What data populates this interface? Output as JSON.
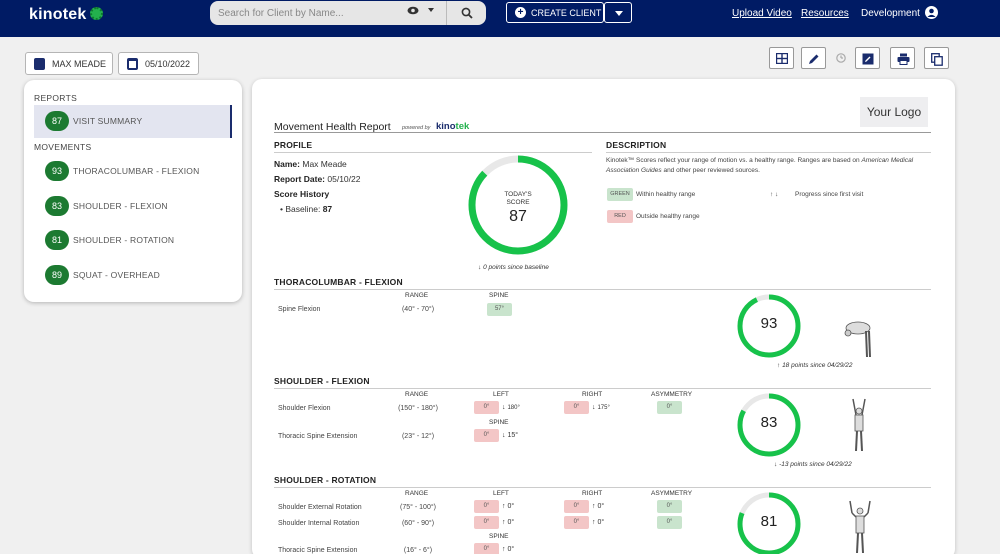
{
  "nav": {
    "brand": "kinotek",
    "search_placeholder": "Search for Client by Name...",
    "create_client": "CREATE CLIENT",
    "upload_video": "Upload Video",
    "resources": "Resources",
    "account": "Development"
  },
  "subbar": {
    "client_name": "MAX MEADE",
    "date": "05/10/2022"
  },
  "sidebar": {
    "reports_heading": "REPORTS",
    "visit_summary": {
      "score": "87",
      "label": "VISIT SUMMARY"
    },
    "movements_heading": "MOVEMENTS",
    "movements": [
      {
        "score": "93",
        "label": "THORACOLUMBAR - FLEXION"
      },
      {
        "score": "83",
        "label": "SHOULDER - FLEXION"
      },
      {
        "score": "81",
        "label": "SHOULDER - ROTATION"
      },
      {
        "score": "89",
        "label": "SQUAT - OVERHEAD"
      }
    ]
  },
  "report": {
    "your_logo": "Your Logo",
    "title": "Movement Health Report",
    "powered_by": "powered by",
    "profile_heading": "PROFILE",
    "name_label": "Name:",
    "name_value": "Max Meade",
    "date_label": "Report Date:",
    "date_value": "05/10/22",
    "history_label": "Score History",
    "baseline_label": "Baseline:",
    "baseline_value": "87",
    "today_label_1": "TODAY'S",
    "today_label_2": "SCORE",
    "today_score": "87",
    "today_score_fraction": 0.87,
    "today_since": "0 points since baseline",
    "description_heading": "DESCRIPTION",
    "description_1": "Kinotek™ Scores reflect your range of motion vs. a healthy range. Ranges are based on",
    "description_2": "American Medical Association Guides",
    "description_3": "and other peer reviewed sources.",
    "legend_green_box": "GREEN",
    "legend_green_text": "Within healthy range",
    "legend_red_box": "RED",
    "legend_red_text": "Outside healthy range",
    "legend_progress": "Progress since first visit",
    "colors": {
      "green": "#17c24a",
      "ring_track": "#e8e8e8",
      "nav": "#001b64"
    },
    "sections": {
      "thoracolumbar": {
        "title": "THORACOLUMBAR - FLEXION",
        "col_range": "RANGE",
        "col_spine": "SPINE",
        "row1_label": "Spine Flexion",
        "row1_range": "(40° - 70°)",
        "row1_spine": "57°",
        "score": "93",
        "score_fraction": 0.93,
        "since": "18 points since 04/29/22"
      },
      "shoulder_flexion": {
        "title": "SHOULDER - FLEXION",
        "col_range": "RANGE",
        "col_left": "LEFT",
        "col_right": "RIGHT",
        "col_asym": "ASYMMETRY",
        "col_spine": "SPINE",
        "row1_label": "Shoulder Flexion",
        "row1_range": "(150° - 180°)",
        "row1_left": "0°",
        "row1_left_delta": "180°",
        "row1_right": "0°",
        "row1_right_delta": "175°",
        "row1_asym": "0°",
        "row2_label": "Thoracic Spine Extension",
        "row2_range": "(23° - 12°)",
        "row2_spine": "0°",
        "row2_spine_delta": "15°",
        "score": "83",
        "score_fraction": 0.83,
        "since": "-13 points since 04/29/22"
      },
      "shoulder_rotation": {
        "title": "SHOULDER - ROTATION",
        "col_range": "RANGE",
        "col_left": "LEFT",
        "col_right": "RIGHT",
        "col_asym": "ASYMMETRY",
        "col_spine": "SPINE",
        "row1_label": "Shoulder External Rotation",
        "row1_range": "(75° - 100°)",
        "row1_left": "0°",
        "row1_left_delta": "0°",
        "row1_right": "0°",
        "row1_right_delta": "0°",
        "row1_asym": "0°",
        "row2_label": "Shoulder Internal Rotation",
        "row2_range": "(60° - 90°)",
        "row2_left": "0°",
        "row2_left_delta": "0°",
        "row2_right": "0°",
        "row2_right_delta": "0°",
        "row2_asym": "0°",
        "row3_label": "Thoracic Spine Extension",
        "row3_range": "(16° - 6°)",
        "row3_spine": "0°",
        "row3_spine_delta": "0°",
        "score": "81",
        "score_fraction": 0.81
      }
    }
  }
}
